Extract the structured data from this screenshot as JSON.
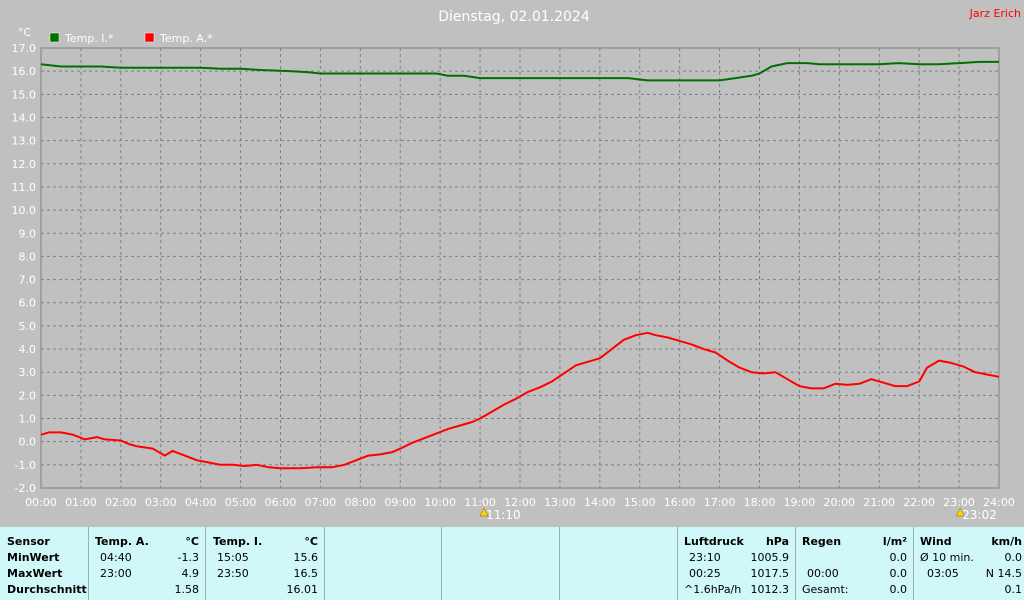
{
  "header": {
    "title": "Dienstag, 02.01.2024",
    "author": "Jarz Erich"
  },
  "colors": {
    "inner": "#007000",
    "outer": "#ff0000",
    "background": "#c0c0c0",
    "plot": "#c0c0c0",
    "stats_bg": "#d0f8f8"
  },
  "chart_data": {
    "type": "line",
    "title": "Dienstag, 02.01.2024",
    "ylabel": "°C",
    "xlabel": "",
    "ylim": [
      -2.0,
      17.0
    ],
    "xlim": [
      0,
      24
    ],
    "grid": true,
    "legend_position": "top-left",
    "x_ticks": [
      "00:00",
      "01:00",
      "02:00",
      "03:00",
      "04:00",
      "05:00",
      "06:00",
      "07:00",
      "08:00",
      "09:00",
      "10:00",
      "11:00",
      "12:00",
      "13:00",
      "14:00",
      "15:00",
      "16:00",
      "17:00",
      "18:00",
      "19:00",
      "20:00",
      "21:00",
      "22:00",
      "23:00",
      "24:00"
    ],
    "y_ticks": [
      "17.0",
      "16.0",
      "15.0",
      "14.0",
      "13.0",
      "12.0",
      "11.0",
      "10.0",
      "9.0",
      "8.0",
      "7.0",
      "6.0",
      "5.0",
      "4.0",
      "3.0",
      "2.0",
      "1.0",
      "0.0",
      "-1.0",
      "-2.0"
    ],
    "series": [
      {
        "name": "Temp. I.*",
        "color": "#007000",
        "points": [
          [
            0,
            16.3
          ],
          [
            0.5,
            16.2
          ],
          [
            1.5,
            16.2
          ],
          [
            2,
            16.15
          ],
          [
            3,
            16.15
          ],
          [
            4,
            16.15
          ],
          [
            4.5,
            16.1
          ],
          [
            5,
            16.1
          ],
          [
            5.5,
            16.05
          ],
          [
            6.3,
            16.0
          ],
          [
            6.7,
            15.95
          ],
          [
            7,
            15.9
          ],
          [
            8,
            15.9
          ],
          [
            9,
            15.9
          ],
          [
            9.9,
            15.9
          ],
          [
            10.2,
            15.8
          ],
          [
            10.6,
            15.8
          ],
          [
            11,
            15.7
          ],
          [
            12,
            15.7
          ],
          [
            13,
            15.7
          ],
          [
            14,
            15.7
          ],
          [
            14.7,
            15.7
          ],
          [
            15.2,
            15.6
          ],
          [
            16,
            15.6
          ],
          [
            17,
            15.6
          ],
          [
            17.4,
            15.7
          ],
          [
            17.8,
            15.8
          ],
          [
            18,
            15.9
          ],
          [
            18.3,
            16.2
          ],
          [
            18.7,
            16.35
          ],
          [
            19.2,
            16.35
          ],
          [
            19.5,
            16.3
          ],
          [
            20,
            16.3
          ],
          [
            21,
            16.3
          ],
          [
            21.5,
            16.35
          ],
          [
            22,
            16.3
          ],
          [
            22.5,
            16.3
          ],
          [
            23,
            16.35
          ],
          [
            23.5,
            16.4
          ],
          [
            24,
            16.4
          ]
        ]
      },
      {
        "name": "Temp. A.*",
        "color": "#ff0000",
        "points": [
          [
            0,
            0.3
          ],
          [
            0.2,
            0.4
          ],
          [
            0.5,
            0.4
          ],
          [
            0.8,
            0.3
          ],
          [
            1.1,
            0.1
          ],
          [
            1.4,
            0.2
          ],
          [
            1.6,
            0.1
          ],
          [
            2,
            0.05
          ],
          [
            2.2,
            -0.1
          ],
          [
            2.4,
            -0.2
          ],
          [
            2.8,
            -0.3
          ],
          [
            3,
            -0.5
          ],
          [
            3.1,
            -0.6
          ],
          [
            3.3,
            -0.4
          ],
          [
            3.6,
            -0.6
          ],
          [
            3.9,
            -0.8
          ],
          [
            4.2,
            -0.9
          ],
          [
            4.5,
            -1.0
          ],
          [
            4.8,
            -1.0
          ],
          [
            5.1,
            -1.05
          ],
          [
            5.4,
            -1.0
          ],
          [
            5.7,
            -1.1
          ],
          [
            6,
            -1.15
          ],
          [
            6.5,
            -1.15
          ],
          [
            6.9,
            -1.1
          ],
          [
            7.3,
            -1.1
          ],
          [
            7.6,
            -1.0
          ],
          [
            7.9,
            -0.8
          ],
          [
            8.2,
            -0.6
          ],
          [
            8.5,
            -0.55
          ],
          [
            8.8,
            -0.45
          ],
          [
            9,
            -0.3
          ],
          [
            9.3,
            -0.05
          ],
          [
            9.6,
            0.15
          ],
          [
            9.9,
            0.35
          ],
          [
            10.2,
            0.55
          ],
          [
            10.5,
            0.7
          ],
          [
            10.8,
            0.85
          ],
          [
            11,
            1.0
          ],
          [
            11.3,
            1.3
          ],
          [
            11.6,
            1.6
          ],
          [
            11.9,
            1.85
          ],
          [
            12.2,
            2.15
          ],
          [
            12.5,
            2.35
          ],
          [
            12.8,
            2.6
          ],
          [
            13.1,
            2.95
          ],
          [
            13.4,
            3.3
          ],
          [
            13.7,
            3.45
          ],
          [
            14,
            3.6
          ],
          [
            14.3,
            4.0
          ],
          [
            14.6,
            4.4
          ],
          [
            14.9,
            4.6
          ],
          [
            15.2,
            4.7
          ],
          [
            15.4,
            4.6
          ],
          [
            15.7,
            4.5
          ],
          [
            16,
            4.35
          ],
          [
            16.3,
            4.2
          ],
          [
            16.6,
            4.0
          ],
          [
            16.9,
            3.85
          ],
          [
            17.2,
            3.5
          ],
          [
            17.5,
            3.2
          ],
          [
            17.8,
            3.0
          ],
          [
            18.1,
            2.95
          ],
          [
            18.4,
            3.0
          ],
          [
            18.7,
            2.7
          ],
          [
            19,
            2.4
          ],
          [
            19.3,
            2.3
          ],
          [
            19.6,
            2.3
          ],
          [
            19.9,
            2.5
          ],
          [
            20.2,
            2.45
          ],
          [
            20.5,
            2.5
          ],
          [
            20.8,
            2.7
          ],
          [
            21.1,
            2.55
          ],
          [
            21.4,
            2.4
          ],
          [
            21.7,
            2.4
          ],
          [
            22,
            2.6
          ],
          [
            22.2,
            3.2
          ],
          [
            22.5,
            3.5
          ],
          [
            22.8,
            3.4
          ],
          [
            23.1,
            3.25
          ],
          [
            23.4,
            3.0
          ],
          [
            23.7,
            2.9
          ],
          [
            24,
            2.8
          ]
        ]
      }
    ],
    "markers": [
      {
        "x": 11.1,
        "label": "11:10",
        "icon": "sunrise-icon"
      },
      {
        "x": 23.03,
        "label": "23:02",
        "icon": "sunset-icon"
      }
    ]
  },
  "stats": {
    "col1": {
      "title": "Sensor",
      "rows": [
        "MinWert",
        "MaxWert",
        "Durchschnitt"
      ]
    },
    "col2": {
      "title": "Temp. A.",
      "unit": "°C",
      "min_time": "04:40",
      "min_value": "-1.3",
      "max_time": "23:00",
      "max_value": "4.9",
      "avg_value": "1.58"
    },
    "col3": {
      "title": "Temp. I.",
      "unit": "°C",
      "min_time": "15:05",
      "min_value": "15.6",
      "max_time": "23:50",
      "max_value": "16.5",
      "avg_value": "16.01"
    },
    "pressure": {
      "title": "Luftdruck",
      "unit": "hPa",
      "min_time": "23:10",
      "min_value": "1005.9",
      "max_time": "00:25",
      "max_value": "1017.5",
      "trend": "^1.6hPa/h",
      "avg_value": "1012.3"
    },
    "rain": {
      "title": "Regen",
      "unit": "l/m²",
      "min_value": "0.0",
      "max_time": "00:00",
      "max_value": "0.0",
      "total_label": "Gesamt:",
      "total_value": "0.0"
    },
    "wind": {
      "title": "Wind",
      "unit": "km/h",
      "avg_label": "Ø 10 min.",
      "avg_value": "0.0",
      "max_time": "03:05",
      "max_value": "N 14.5",
      "last_value": "0.1"
    }
  }
}
